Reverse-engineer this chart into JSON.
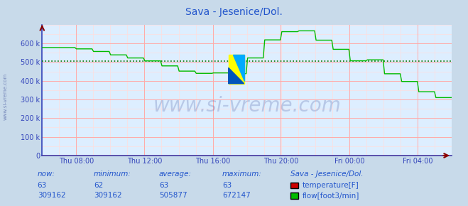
{
  "title": "Sava - Jesenice/Dol.",
  "title_color": "#2255cc",
  "bg_color": "#c8daea",
  "plot_bg_color": "#ddeeff",
  "axis_color": "#3344bb",
  "grid_color_major": "#ffaaaa",
  "grid_color_minor": "#ffdddd",
  "flow_color": "#00bb00",
  "temp_color": "#cc0000",
  "avg_line_color": "#007700",
  "avg_value": 505877,
  "ymax": 700000,
  "ymin": 0,
  "ytick_labels": [
    "0",
    "100 k",
    "200 k",
    "300 k",
    "400 k",
    "500 k",
    "600 k"
  ],
  "ytick_values": [
    0,
    100000,
    200000,
    300000,
    400000,
    500000,
    600000
  ],
  "xtick_labels": [
    "Thu 08:00",
    "Thu 12:00",
    "Thu 16:00",
    "Thu 20:00",
    "Fri 00:00",
    "Fri 04:00"
  ],
  "xtick_positions": [
    0.083,
    0.25,
    0.417,
    0.583,
    0.75,
    0.917
  ],
  "watermark": "www.si-vreme.com",
  "watermark_color": "#223388",
  "stats_labels": [
    "now:",
    "minimum:",
    "average:",
    "maximum:",
    "Sava - Jesenice/Dol."
  ],
  "stats_temp": [
    63,
    62,
    63,
    63
  ],
  "stats_flow": [
    309162,
    309162,
    505877,
    672147
  ],
  "legend_temp_label": "temperature[F]",
  "legend_flow_label": "flow[foot3/min]",
  "logo_yellow": "#ffff00",
  "logo_blue": "#0055bb",
  "logo_cyan": "#00aaff"
}
